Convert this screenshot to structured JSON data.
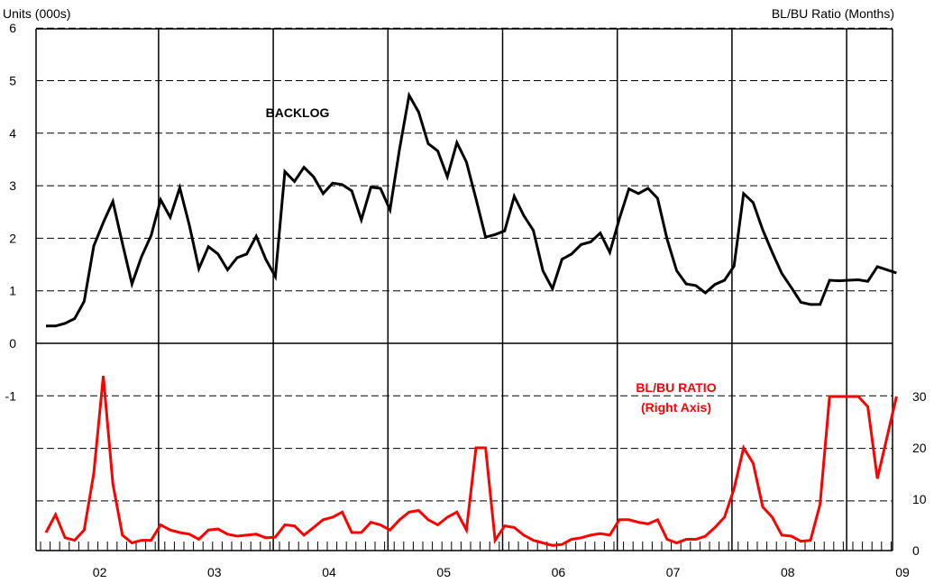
{
  "chart_data": {
    "type": "line",
    "left_axis_title": "Units (000s)",
    "right_axis_title": "BL/BU Ratio (Months)",
    "left_ticks": [
      "6",
      "5",
      "4",
      "3",
      "2",
      "1",
      "0",
      "-1"
    ],
    "right_ticks": [
      "30",
      "20",
      "10",
      "0"
    ],
    "x_labels": [
      "02",
      "03",
      "04",
      "05",
      "06",
      "07",
      "08",
      "09"
    ],
    "upper_ylim": [
      0,
      6
    ],
    "lower_ylim": [
      0,
      30
    ],
    "grid": true,
    "series": [
      {
        "name": "BACKLOG",
        "axis": "left",
        "color": "#000000",
        "values": [
          0.33,
          0.33,
          0.38,
          0.47,
          0.8,
          1.85,
          2.3,
          2.7,
          1.9,
          1.13,
          1.65,
          2.05,
          2.73,
          2.4,
          2.96,
          2.25,
          1.42,
          1.84,
          1.7,
          1.4,
          1.63,
          1.7,
          2.04,
          1.6,
          1.27,
          3.27,
          3.08,
          3.35,
          3.17,
          2.85,
          3.05,
          3.02,
          2.9,
          2.35,
          2.97,
          2.95,
          2.54,
          3.7,
          4.72,
          4.4,
          3.8,
          3.66,
          3.17,
          3.82,
          3.45,
          2.75,
          2.02,
          2.07,
          2.14,
          2.8,
          2.43,
          2.15,
          1.38,
          1.04,
          1.6,
          1.7,
          1.88,
          1.93,
          2.1,
          1.73,
          2.37,
          2.94,
          2.85,
          2.95,
          2.76,
          1.98,
          1.38,
          1.13,
          1.1,
          0.96,
          1.12,
          1.2,
          1.47,
          2.85,
          2.68,
          2.16,
          1.73,
          1.33,
          1.06,
          0.78,
          0.74,
          0.74,
          1.2,
          1.19,
          1.2,
          1.21,
          1.18,
          1.46,
          1.4,
          1.34
        ]
      },
      {
        "name": "BL/BU RATIO\n(Right Axis)",
        "label_lines": [
          "BL/BU RATIO",
          "(Right Axis)"
        ],
        "axis": "right",
        "color": "#ff0000",
        "values": [
          3.5,
          7,
          2.5,
          2,
          4,
          15,
          34,
          13,
          3,
          1.5,
          2,
          2,
          5,
          4,
          3.5,
          3.2,
          2.2,
          4,
          4.2,
          3.2,
          2.8,
          3,
          3.2,
          2.5,
          2.6,
          5,
          4.8,
          3,
          4.5,
          6,
          6.5,
          7.5,
          3.5,
          3.5,
          5.5,
          5,
          4,
          6,
          7.5,
          7.8,
          6,
          5,
          6.5,
          7.5,
          4,
          20,
          20,
          2,
          4.8,
          4.5,
          3,
          2,
          1.5,
          1,
          1.2,
          2.2,
          2.5,
          3,
          3.3,
          3,
          6,
          6,
          5.5,
          5.2,
          6,
          2.2,
          1.5,
          2.2,
          2.2,
          2.8,
          4.5,
          6.5,
          12,
          20,
          17,
          8.5,
          6.5,
          3,
          2.8,
          1.8,
          2,
          9,
          30,
          30,
          30,
          30,
          28,
          14,
          22,
          30
        ]
      }
    ]
  }
}
